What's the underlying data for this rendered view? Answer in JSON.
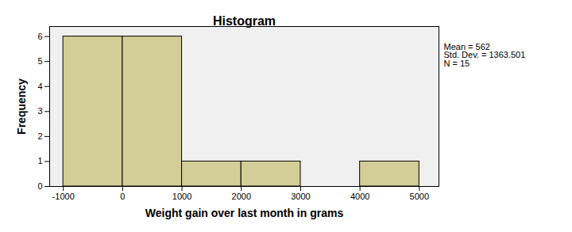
{
  "chart_data": {
    "type": "histogram",
    "title": "Histogram",
    "x_label": "Weight gain over last month in grams",
    "y_label": "Frequency",
    "bins": [
      -1000,
      0,
      1000,
      2000,
      3000,
      4000,
      5000
    ],
    "counts": [
      6,
      6,
      1,
      1,
      0,
      1
    ],
    "color": "#d3ce97",
    "xlim": [
      -1230,
      5330
    ],
    "xticks": [
      -1000,
      0,
      1000,
      2000,
      3000,
      4000,
      5000
    ],
    "ylim": [
      0,
      6.4
    ],
    "yticks": [
      0,
      1,
      2,
      3,
      4,
      5,
      6
    ],
    "annotations": [
      "Mean = 562",
      "Std. Dev. = 1363.501",
      "N = 15"
    ],
    "grid": false
  }
}
